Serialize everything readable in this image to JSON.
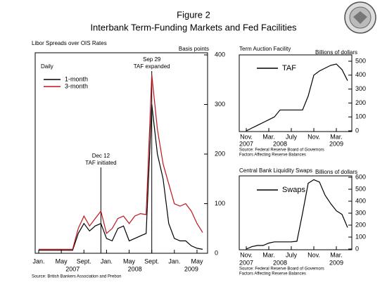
{
  "header": {
    "figure": "Figure 2",
    "title": "Interbank Term-Funding Markets and Fed Facilities"
  },
  "chart_data": [
    {
      "type": "line",
      "title": "Libor Spreads over OIS Rates",
      "subtitle": "Daily",
      "axis_label": "Basis points",
      "x": [
        "2007-01",
        "2007-02",
        "2007-03",
        "2007-04",
        "2007-05",
        "2007-06",
        "2007-07",
        "2007-08",
        "2007-09",
        "2007-10",
        "2007-11",
        "2007-12",
        "2008-01",
        "2008-02",
        "2008-03",
        "2008-04",
        "2008-05",
        "2008-06",
        "2008-07",
        "2008-08",
        "2008-09",
        "2008-10",
        "2008-11",
        "2008-12",
        "2009-01",
        "2009-02",
        "2009-03",
        "2009-04",
        "2009-05",
        "2009-06"
      ],
      "series": [
        {
          "name": "1-month",
          "color": "#000000",
          "values": [
            6,
            6,
            6,
            6,
            6,
            6,
            6,
            40,
            60,
            45,
            55,
            60,
            30,
            25,
            50,
            55,
            25,
            30,
            35,
            40,
            300,
            200,
            150,
            60,
            30,
            25,
            25,
            15,
            10,
            8
          ]
        },
        {
          "name": "3-month",
          "color": "#c0141c",
          "values": [
            8,
            8,
            8,
            8,
            8,
            8,
            8,
            50,
            75,
            55,
            70,
            85,
            40,
            50,
            70,
            75,
            60,
            75,
            80,
            78,
            360,
            250,
            180,
            140,
            100,
            95,
            100,
            85,
            60,
            42
          ]
        }
      ],
      "xlim": [
        "2007-01",
        "2009-06"
      ],
      "ylim": [
        0,
        400
      ],
      "yticks": [
        0,
        100,
        200,
        300,
        400
      ],
      "xticks": [
        {
          "value": "2007-01",
          "label": "Jan."
        },
        {
          "value": "2007-05",
          "label": "May"
        },
        {
          "value": "2007-09",
          "label": "Sept."
        },
        {
          "value": "2008-01",
          "label": "Jan."
        },
        {
          "value": "2008-05",
          "label": "May"
        },
        {
          "value": "2008-09",
          "label": "Sept."
        },
        {
          "value": "2009-01",
          "label": "Jan."
        },
        {
          "value": "2009-05",
          "label": "May"
        }
      ],
      "year_labels": [
        {
          "value": "2007-07",
          "label": "2007"
        },
        {
          "value": "2008-06",
          "label": "2008"
        },
        {
          "value": "2009-04",
          "label": "2009"
        }
      ],
      "annotations": [
        {
          "x": "2007-12",
          "text": [
            "Dec 12",
            "TAF initiated"
          ]
        },
        {
          "x": "2008-09",
          "text": [
            "Sep 29",
            "TAF expanded"
          ]
        }
      ],
      "source": [
        "Source: British Bankers Association and Prebon"
      ]
    },
    {
      "type": "line",
      "title": "Term Auction Facility",
      "axis_label": "Billions of dollars",
      "x": [
        "2007-11",
        "2007-12",
        "2008-01",
        "2008-02",
        "2008-03",
        "2008-04",
        "2008-05",
        "2008-06",
        "2008-07",
        "2008-08",
        "2008-09",
        "2008-10",
        "2008-11",
        "2008-12",
        "2009-01",
        "2009-02",
        "2009-03",
        "2009-04",
        "2009-05"
      ],
      "series": [
        {
          "name": "TAF",
          "color": "#000000",
          "values": [
            0,
            20,
            40,
            60,
            80,
            100,
            150,
            150,
            150,
            150,
            150,
            250,
            400,
            430,
            450,
            470,
            480,
            440,
            360
          ]
        }
      ],
      "xlim": [
        "2007-11",
        "2009-05"
      ],
      "ylim": [
        0,
        500
      ],
      "yticks": [
        0,
        100,
        200,
        300,
        400,
        500
      ],
      "xticks": [
        {
          "value": "2007-11",
          "label": "Nov."
        },
        {
          "value": "2008-03",
          "label": "Mar."
        },
        {
          "value": "2008-07",
          "label": "July"
        },
        {
          "value": "2008-11",
          "label": "Nov."
        },
        {
          "value": "2009-03",
          "label": "Mar."
        }
      ],
      "year_labels": [
        {
          "value": "2007-11",
          "label": "2007"
        },
        {
          "value": "2008-05",
          "label": "2008"
        },
        {
          "value": "2009-03",
          "label": "2009"
        }
      ],
      "source": [
        "Source: Federal Reserve Board of Governors",
        "Factors Affecting Reserve Balances"
      ]
    },
    {
      "type": "line",
      "title": "Central Bank Liquidity Swaps",
      "axis_label": "Billions of dollars",
      "x": [
        "2007-11",
        "2007-12",
        "2008-01",
        "2008-02",
        "2008-03",
        "2008-04",
        "2008-05",
        "2008-06",
        "2008-07",
        "2008-08",
        "2008-09",
        "2008-10",
        "2008-11",
        "2008-12",
        "2009-01",
        "2009-02",
        "2009-03",
        "2009-04",
        "2009-05"
      ],
      "series": [
        {
          "name": "Swaps",
          "color": "#000000",
          "values": [
            0,
            20,
            30,
            30,
            50,
            60,
            60,
            60,
            60,
            65,
            300,
            550,
            580,
            560,
            450,
            380,
            320,
            290,
            180
          ]
        }
      ],
      "xlim": [
        "2007-11",
        "2009-05"
      ],
      "ylim": [
        0,
        600
      ],
      "yticks": [
        0,
        100,
        200,
        300,
        400,
        500,
        600
      ],
      "xticks": [
        {
          "value": "2007-11",
          "label": "Nov."
        },
        {
          "value": "2008-03",
          "label": "Mar."
        },
        {
          "value": "2008-07",
          "label": "July"
        },
        {
          "value": "2008-11",
          "label": "Nov."
        },
        {
          "value": "2009-03",
          "label": "Mar."
        }
      ],
      "year_labels": [
        {
          "value": "2007-11",
          "label": "2007"
        },
        {
          "value": "2008-05",
          "label": "2008"
        },
        {
          "value": "2009-03",
          "label": "2009"
        }
      ],
      "source": [
        "Source: Federal Reserve Board of Governors",
        "Factors Affecting Reserve Balances"
      ]
    }
  ]
}
